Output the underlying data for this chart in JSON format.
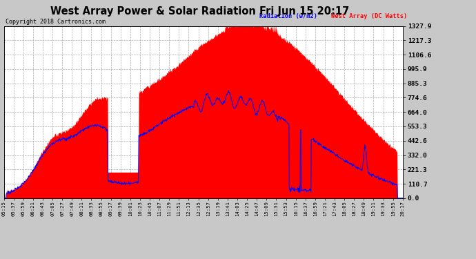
{
  "title": "West Array Power & Solar Radiation Fri Jun 15 20:17",
  "copyright": "Copyright 2018 Cartronics.com",
  "legend_radiation": "Radiation (w/m2)",
  "legend_west_array": "West Array (DC Watts)",
  "yticks": [
    0.0,
    110.7,
    221.3,
    332.0,
    442.6,
    553.3,
    664.0,
    774.6,
    885.3,
    995.9,
    1106.6,
    1217.3,
    1327.9
  ],
  "ymax": 1327.9,
  "bg_color": "#c8c8c8",
  "plot_bg_color": "#ffffff",
  "red_fill_color": "#ff0000",
  "blue_line_color": "#0000ff",
  "xtick_labels": [
    "05:15",
    "05:37",
    "05:59",
    "06:21",
    "06:43",
    "07:05",
    "07:27",
    "07:49",
    "08:11",
    "08:33",
    "08:55",
    "09:17",
    "09:39",
    "10:01",
    "10:23",
    "10:45",
    "11:07",
    "11:29",
    "11:51",
    "12:13",
    "12:35",
    "12:57",
    "13:19",
    "13:41",
    "14:03",
    "14:25",
    "14:47",
    "15:09",
    "15:31",
    "15:53",
    "16:15",
    "16:37",
    "16:59",
    "17:21",
    "17:43",
    "18:05",
    "18:27",
    "18:49",
    "19:11",
    "19:33",
    "19:55",
    "20:17"
  ]
}
